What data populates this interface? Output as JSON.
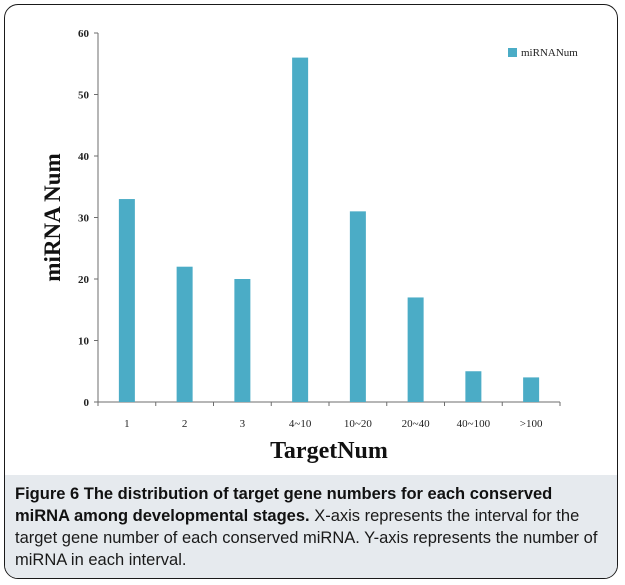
{
  "chart_data": {
    "type": "bar",
    "categories": [
      "1",
      "2",
      "3",
      "4~10",
      "10~20",
      "20~40",
      "40~100",
      ">100"
    ],
    "series": [
      {
        "name": "miRNANum",
        "values": [
          33,
          22,
          20,
          56,
          31,
          17,
          5,
          4
        ]
      }
    ],
    "xlabel": "TargetNum",
    "ylabel": "miRNA Num",
    "ylim": [
      0,
      60
    ],
    "yticks": [
      0,
      10,
      20,
      30,
      40,
      50,
      60
    ],
    "grid": false,
    "legend_position": "top-right",
    "bar_color": "#4bacc6"
  },
  "caption": {
    "title": "Figure 6 The distribution of target gene numbers for each conserved miRNA among developmental stages.",
    "body": " X-axis represents the interval for the target gene number of each conserved miRNA. Y-axis represents the number of miRNA in each interval."
  }
}
